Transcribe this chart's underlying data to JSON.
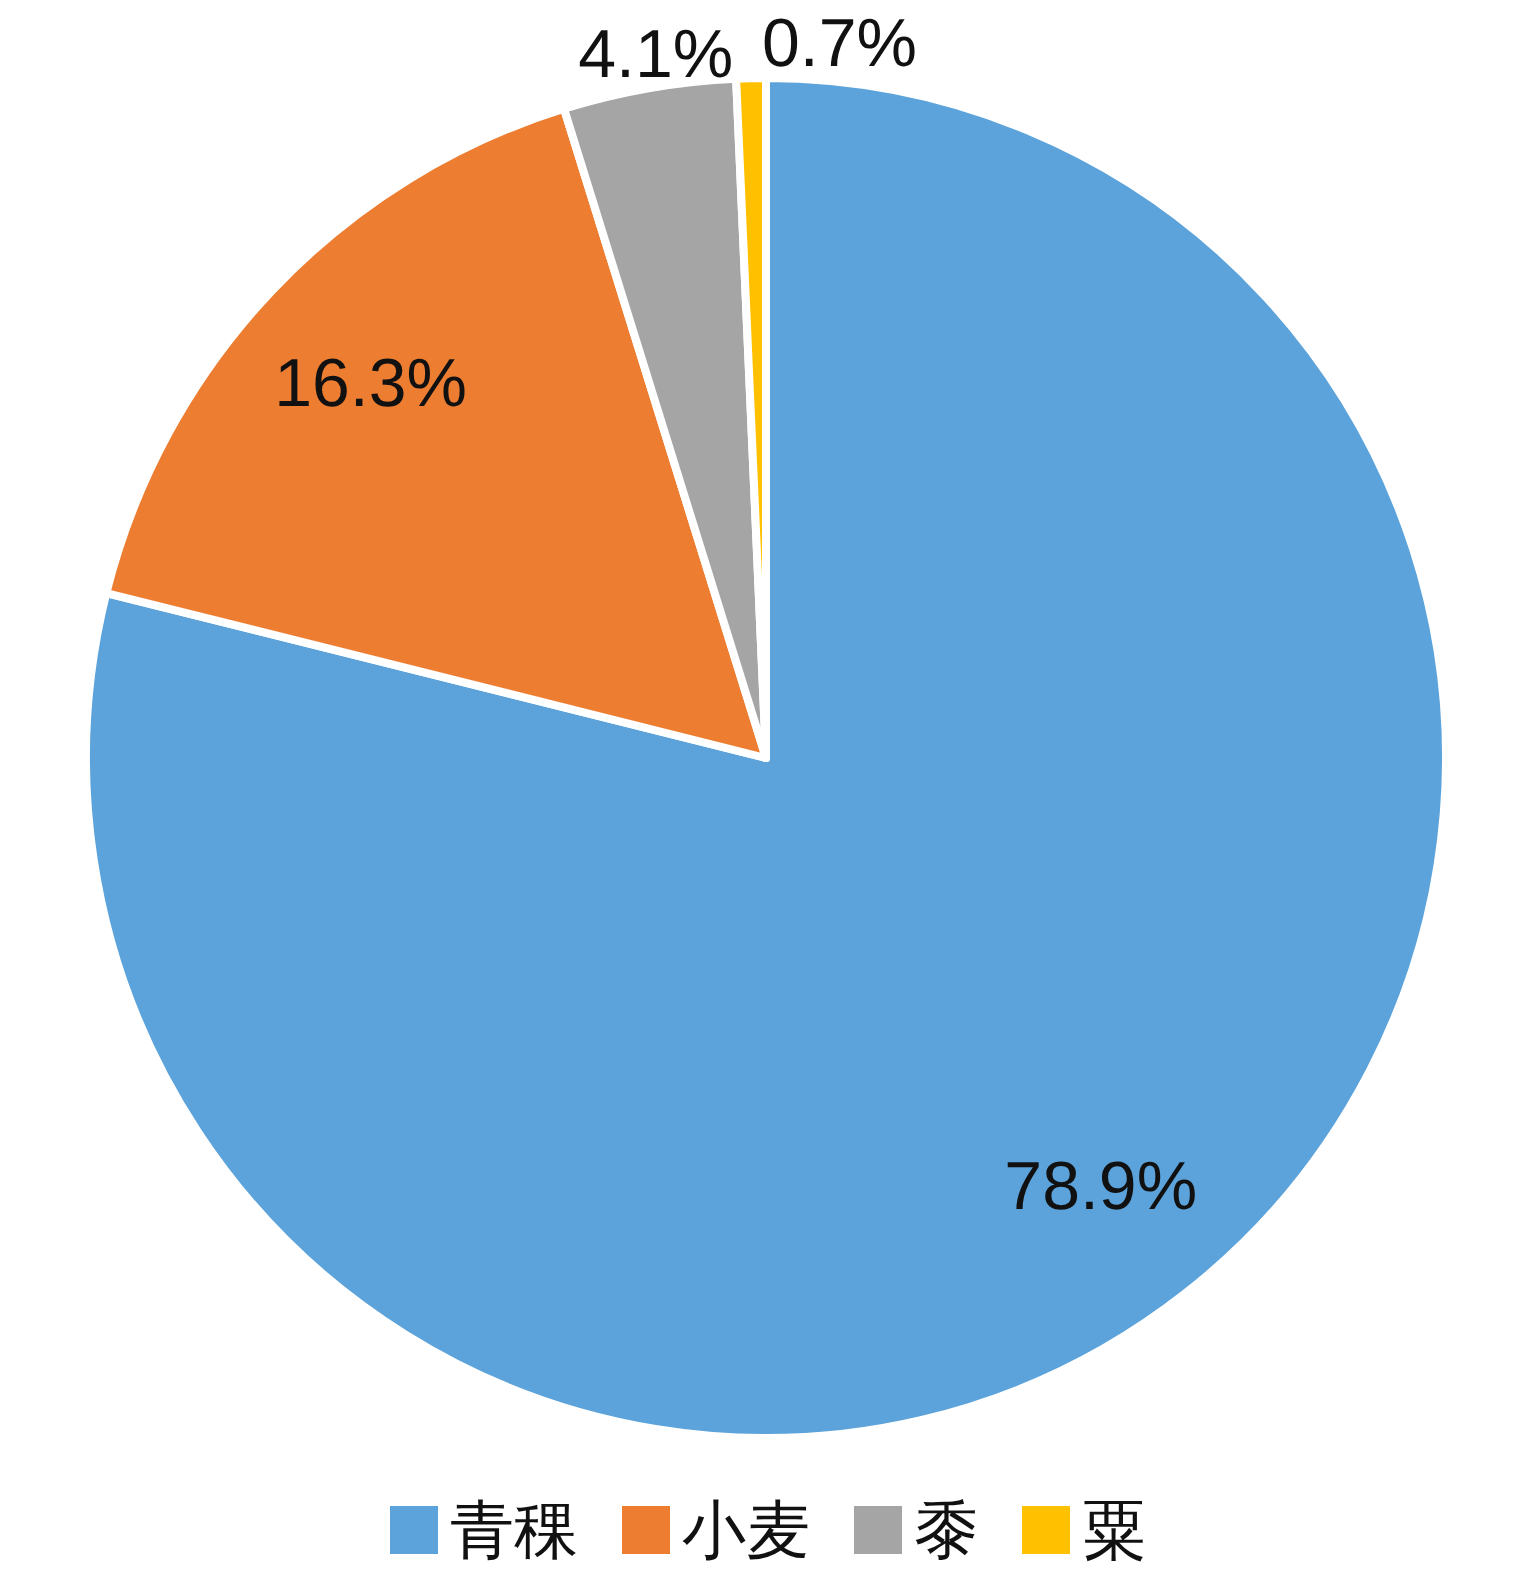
{
  "chart_data": {
    "type": "pie",
    "categories": [
      "青稞",
      "小麦",
      "黍",
      "粟"
    ],
    "values": [
      78.9,
      16.3,
      4.1,
      0.7
    ],
    "colors": [
      "#5ba3da",
      "#ed7d31",
      "#a5a5a5",
      "#ffc000"
    ],
    "value_labels": [
      "78.9%",
      "16.3%",
      "4.1%",
      "0.7%"
    ],
    "legend": "bottom"
  }
}
